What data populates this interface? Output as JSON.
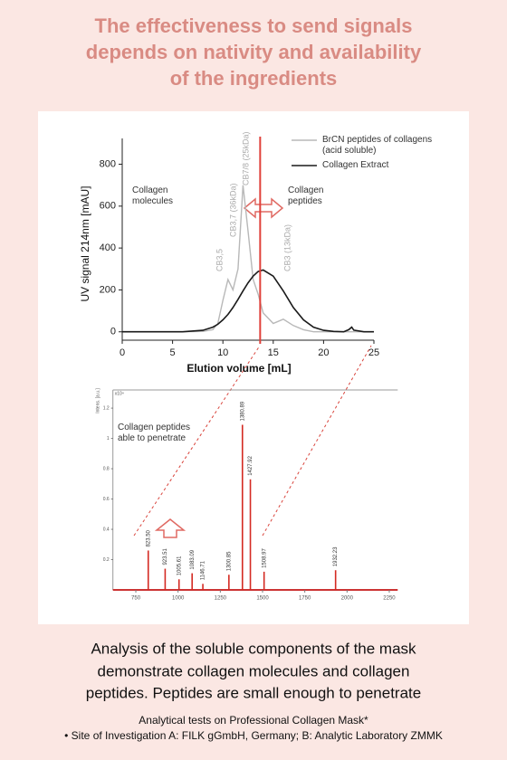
{
  "header": {
    "title_lines": [
      "The effectiveness to send signals",
      "depends on nativity and availability",
      "of the ingredients"
    ]
  },
  "chart_data": [
    {
      "type": "line",
      "xlabel": "Elution volume [mL]",
      "ylabel": "UV signal 214nm [mAU]",
      "x": [
        0,
        2,
        4,
        6,
        8,
        9,
        9.5,
        10,
        10.5,
        11,
        11.5,
        12,
        12.5,
        13,
        13.5,
        14,
        15,
        16,
        17,
        18,
        19,
        20,
        21,
        22,
        22.5,
        22.8,
        23,
        24,
        25
      ],
      "series": [
        {
          "name": "BrCN peptides of collagens (acid soluble)",
          "color": "#b8b8b8",
          "values": [
            0,
            0,
            0,
            0,
            2,
            10,
            40,
            150,
            250,
            200,
            300,
            700,
            480,
            250,
            180,
            90,
            40,
            60,
            30,
            10,
            0,
            0,
            0,
            0,
            0,
            0,
            0,
            0,
            0
          ]
        },
        {
          "name": "Collagen Extract",
          "color": "#1a1a1a",
          "values": [
            0,
            0,
            0,
            0,
            7,
            22,
            36,
            57,
            83,
            116,
            155,
            195,
            234,
            266,
            288,
            295,
            266,
            195,
            116,
            57,
            22,
            7,
            2,
            0,
            10,
            22,
            8,
            0,
            0
          ]
        }
      ],
      "xlim": [
        0,
        25
      ],
      "xticks": [
        0,
        5,
        10,
        15,
        20,
        25
      ],
      "ylim": [
        -40,
        880
      ],
      "yticks": [
        0,
        200,
        400,
        600,
        800
      ],
      "divider_x": 13.7,
      "divider_color": "#e0403a",
      "annotations": [
        "Collagen molecules",
        "Collagen peptides"
      ],
      "peak_labels": [
        "CB3,5",
        "CB3,7 (36kDa)",
        "CB7/8 (25kDa)",
        "CB3 (13kDa)"
      ]
    },
    {
      "type": "stem",
      "ylabel": "Intens. [a.u.]",
      "yscale_label": "x10⁴",
      "x": [
        823.5,
        923.51,
        1005.61,
        1083.09,
        1146.71,
        1300.85,
        1380.89,
        1427.92,
        1508.97,
        1932.23
      ],
      "x_labels": [
        "823.50",
        "923.51",
        "1005.61",
        "1083.09",
        "1146.71",
        "1300.85",
        "1380.89",
        "1427.92",
        "1508.97",
        "1932.23"
      ],
      "values": [
        0.26,
        0.14,
        0.07,
        0.11,
        0.04,
        0.1,
        1.09,
        0.73,
        0.12,
        0.13
      ],
      "color": "#d42a22",
      "xlim": [
        700,
        2300
      ],
      "xticks": [
        750,
        1000,
        1250,
        1500,
        1750,
        2000,
        2250
      ],
      "ylim": [
        0,
        1.32
      ],
      "yticks": [
        0.2,
        0.4,
        0.6,
        0.8,
        1,
        1.2
      ],
      "annotations": [
        "Collagen peptides able to penetrate"
      ]
    }
  ],
  "caption": {
    "lines": [
      "Analysis of the soluble components of the mask",
      "demonstrate collagen molecules and collagen",
      "peptides. Peptides are small enough to penetrate"
    ]
  },
  "footnotes": [
    "Analytical tests on Professional Collagen Mask*",
    "• Site of Investigation A: FILK gGmbH, Germany; B: Analytic Laboratory ZMMK"
  ]
}
